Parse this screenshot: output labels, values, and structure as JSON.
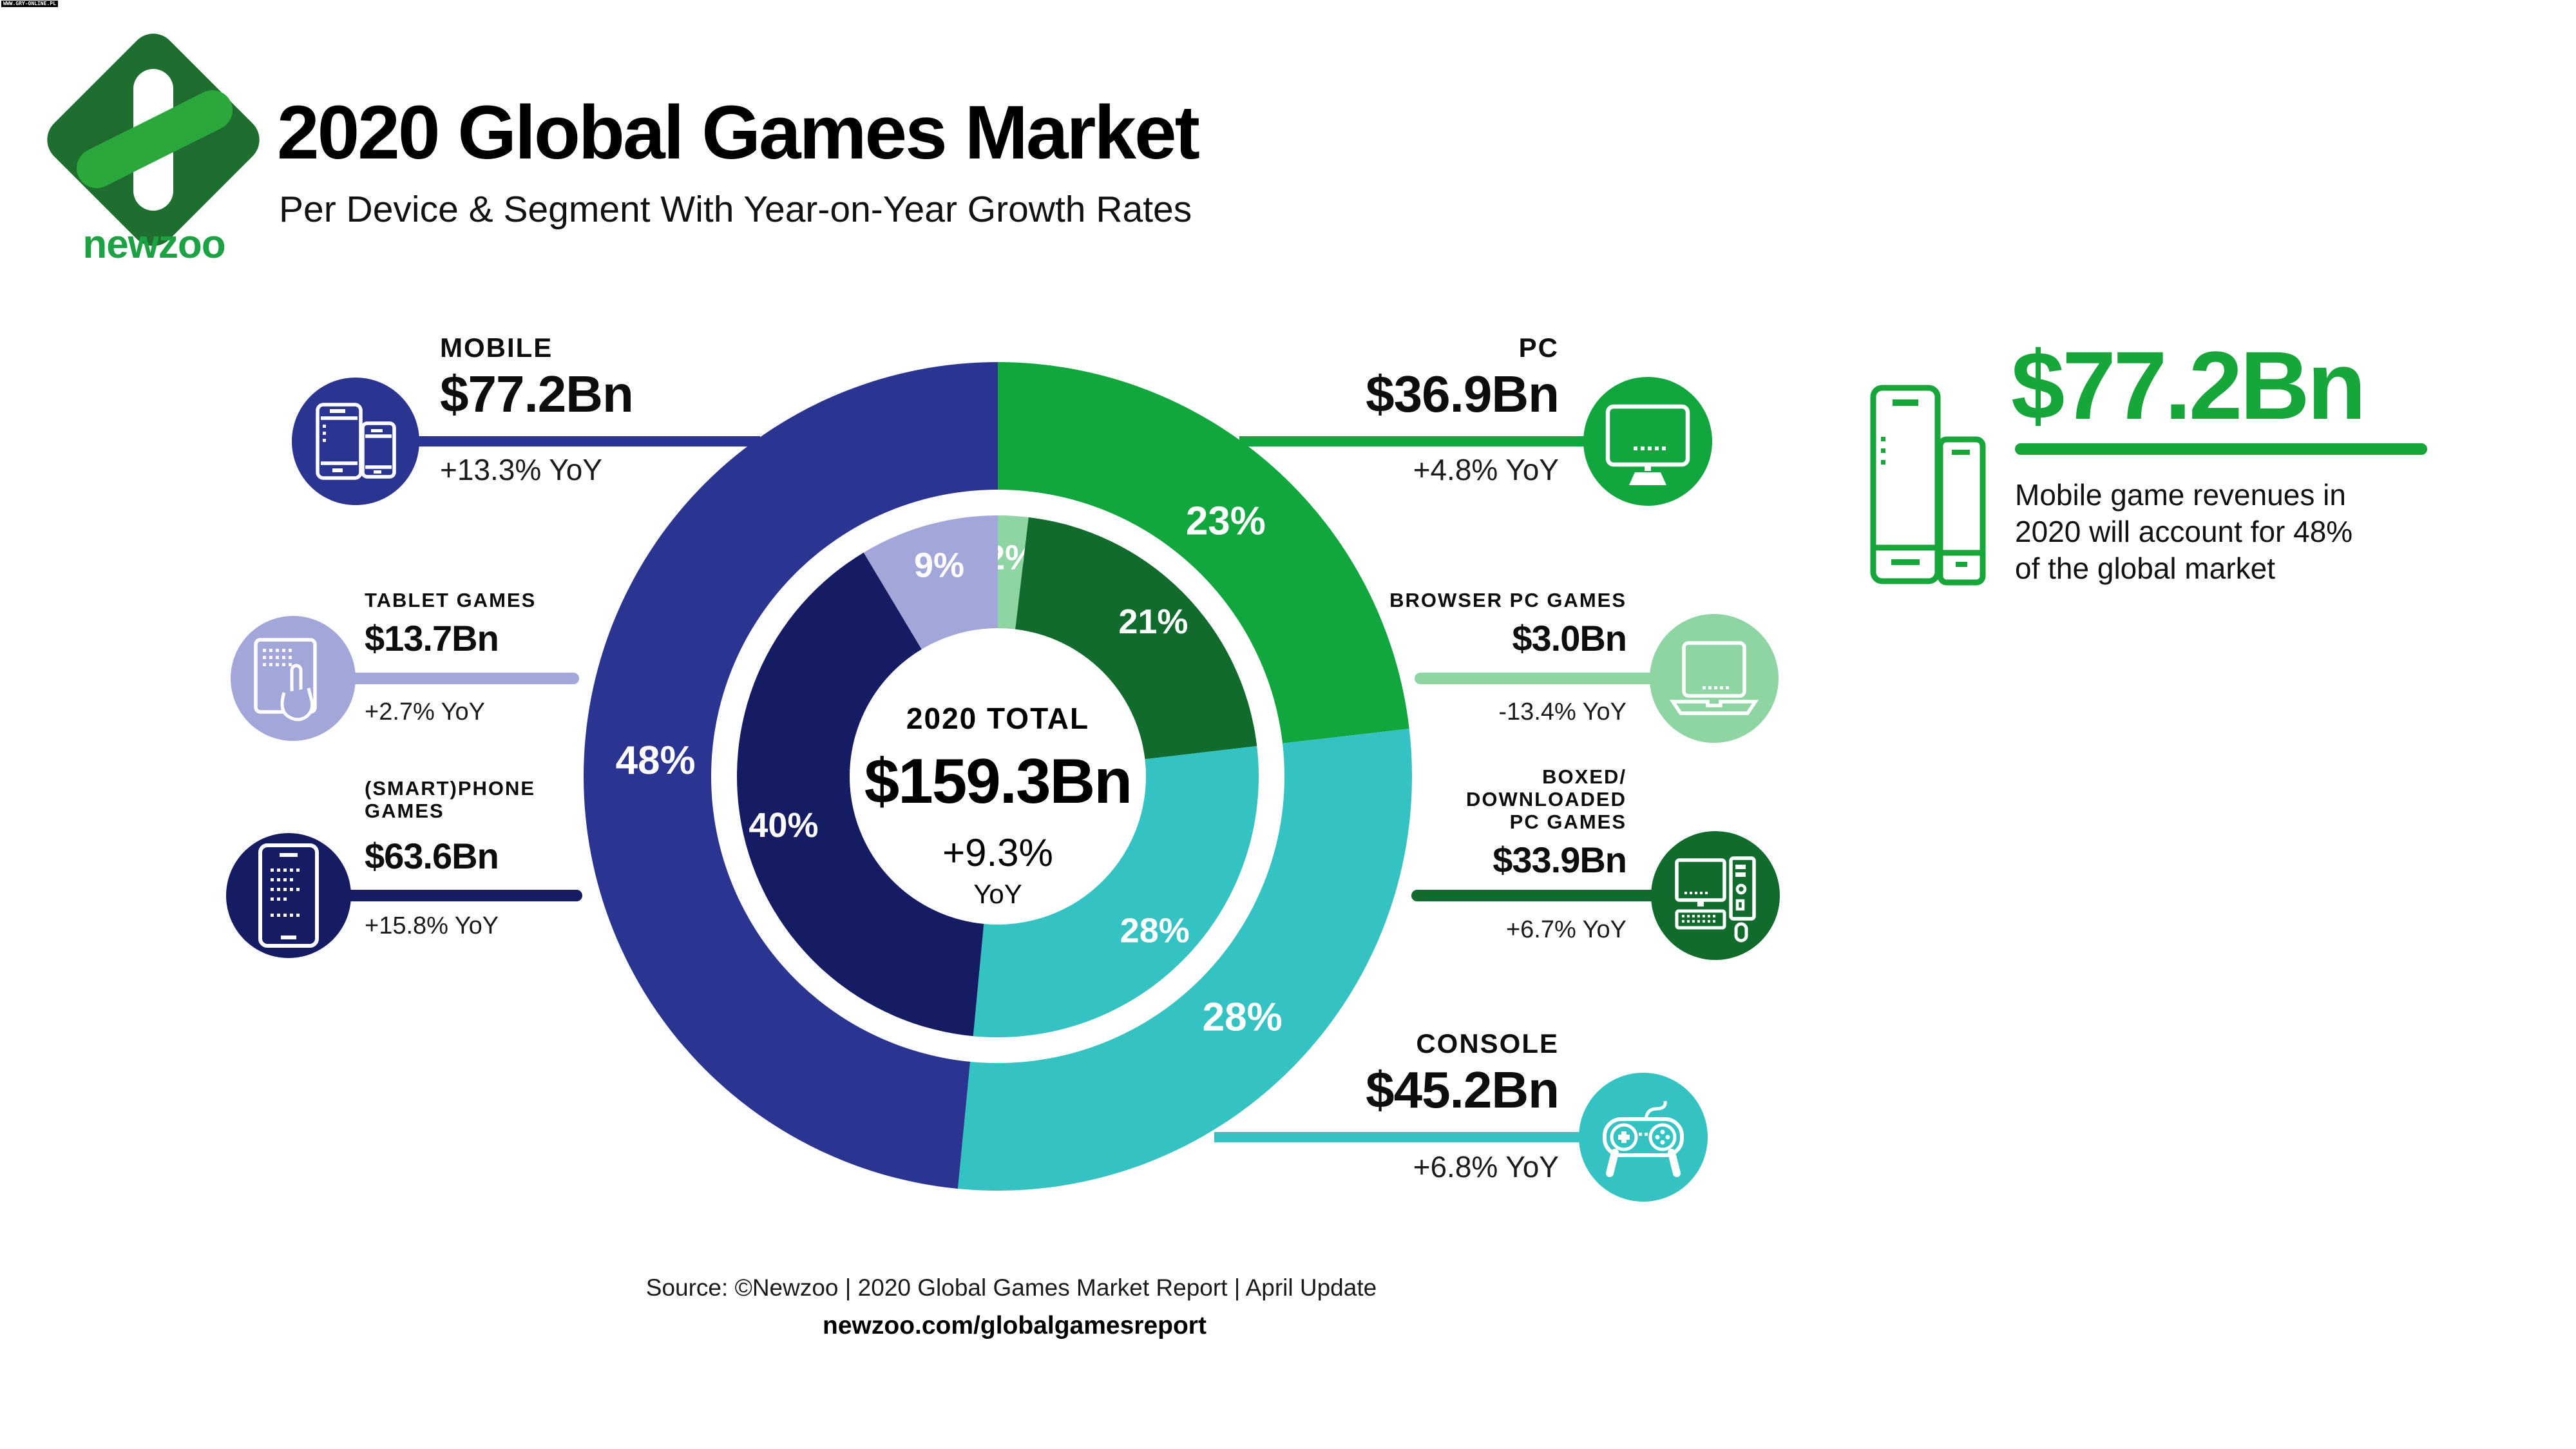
{
  "watermark": "WWW.GRY-ONLINE.PL",
  "logo": {
    "wordmark": "newzoo",
    "diamond_dark_green": "#1E6F2F",
    "diamond_light_green": "#2BA83C",
    "wordmark_green": "#1CA243"
  },
  "header": {
    "title": "2020 Global Games Market",
    "subtitle": "Per Device & Segment With Year-on-Year Growth Rates"
  },
  "chart_data": {
    "type": "donut",
    "title": "2020 Global Games Market Per Device & Segment",
    "total_bn": 159.3,
    "units": "USD Bn",
    "center": {
      "label": "2020 TOTAL",
      "total": "$159.3Bn",
      "growth": "+9.3%",
      "unit": "YoY"
    },
    "outer_ring": {
      "segments": [
        {
          "name": "PC",
          "value_bn": 36.9,
          "label": "23%",
          "color": "#12A63F"
        },
        {
          "name": "CONSOLE",
          "value_bn": 45.2,
          "label": "28%",
          "color": "#34C3C2"
        },
        {
          "name": "MOBILE",
          "value_bn": 77.2,
          "label": "48%",
          "color": "#2C3492"
        }
      ]
    },
    "inner_ring": {
      "segments": [
        {
          "name": "BROWSER PC GAMES",
          "value_bn": 3.0,
          "label": "2%",
          "color": "#8FD4A3"
        },
        {
          "name": "BOXED/DOWNLOADED PC GAMES",
          "value_bn": 33.9,
          "label": "21%",
          "color": "#116B2D"
        },
        {
          "name": "CONSOLE",
          "value_bn": 45.2,
          "label": "28%",
          "color": "#34C3C2"
        },
        {
          "name": "(SMART)PHONE GAMES",
          "value_bn": 63.6,
          "label": "40%",
          "color": "#151C63"
        },
        {
          "name": "TABLET GAMES",
          "value_bn": 13.7,
          "label": "9%",
          "color": "#A2A6D9"
        }
      ]
    }
  },
  "cards": {
    "mobile": {
      "name": "MOBILE",
      "amount": "$77.2Bn",
      "yoy": "+13.3% YoY"
    },
    "pc": {
      "name": "PC",
      "amount": "$36.9Bn",
      "yoy": "+4.8% YoY"
    },
    "console": {
      "name": "CONSOLE",
      "amount": "$45.2Bn",
      "yoy": "+6.8% YoY"
    },
    "tablet": {
      "name": "TABLET GAMES",
      "amount": "$13.7Bn",
      "yoy": "+2.7% YoY"
    },
    "smartphone": {
      "name_line1": "(SMART)PHONE",
      "name_line2": "GAMES",
      "amount": "$63.6Bn",
      "yoy": "+15.8% YoY"
    },
    "browser": {
      "name": "BROWSER PC GAMES",
      "amount": "$3.0Bn",
      "yoy": "-13.4% YoY"
    },
    "boxed": {
      "name_line1": "BOXED/",
      "name_line2": "DOWNLOADED",
      "name_line3": "PC GAMES",
      "amount": "$33.9Bn",
      "yoy": "+6.7% YoY"
    }
  },
  "callout": {
    "value": "$77.2Bn",
    "color": "#17A63A",
    "line1": "Mobile game revenues in",
    "line2": "2020 will account for 48%",
    "line3": "of the global market"
  },
  "source": {
    "line1": "Source: ©Newzoo | 2020 Global Games Market Report | April Update",
    "line2": "newzoo.com/globalgamesreport"
  }
}
